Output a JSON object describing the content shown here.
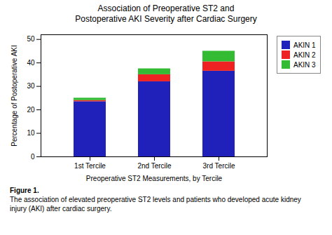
{
  "chart_data": {
    "type": "bar",
    "stacked": true,
    "title": "Association of Preoperative ST2 and\nPostoperative AKI Severity after Cardiac Surgery",
    "xlabel": "Preoperative ST2 Measurements, by Tercile",
    "ylabel": "Percentage of Postoperative AKI",
    "categories": [
      "1st Tercile",
      "2nd Tercile",
      "3rd Tercile"
    ],
    "series": [
      {
        "name": "AKIN 1",
        "color": "#2020BB",
        "values": [
          23.5,
          32.0,
          36.5
        ]
      },
      {
        "name": "AKIN 2",
        "color": "#EE2222",
        "values": [
          0.5,
          3.0,
          4.0
        ]
      },
      {
        "name": "AKIN 3",
        "color": "#33BB33",
        "values": [
          1.0,
          2.5,
          4.5
        ]
      }
    ],
    "ylim": [
      0,
      52
    ],
    "yticks": [
      0,
      10,
      20,
      30,
      40,
      50
    ],
    "grid": false,
    "legend": "right",
    "annotations": [
      "Figure 1.",
      "The association of elevated preoperative ST2 levels and patients who developed acute kidney\ninjury (AKI) after cardiac surgery."
    ]
  }
}
